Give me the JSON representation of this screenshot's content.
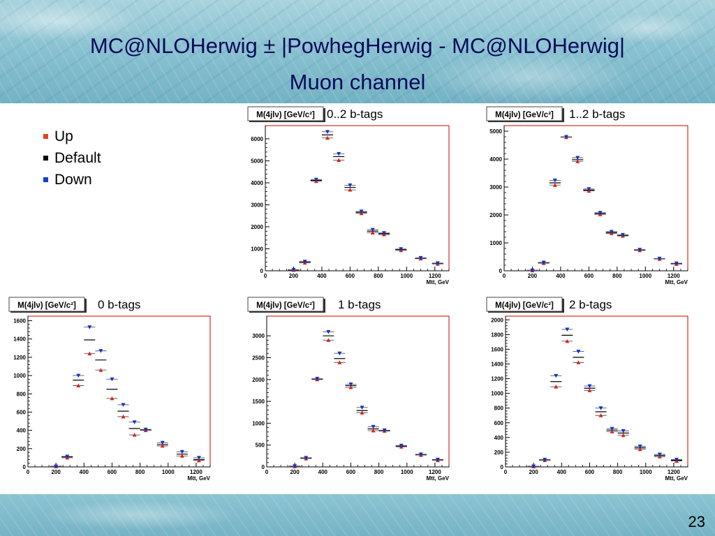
{
  "slide": {
    "title_line1": "MC@NLOHerwig ± |PowhegHerwig - MC@NLOHerwig|",
    "title_line2": "Muon channel",
    "page_number": "23"
  },
  "legend": {
    "items": [
      {
        "label": "Up",
        "color": "#e8401c"
      },
      {
        "label": "Default",
        "color": "#000000"
      },
      {
        "label": "Down",
        "color": "#1040d0"
      }
    ]
  },
  "colors": {
    "up": "#e0201c",
    "default": "#000000",
    "down": "#1030d0",
    "frame": "#cc0000",
    "axis": "#000000"
  },
  "chart_data": [
    {
      "type": "scatter",
      "panel": "0..2 b-tags",
      "hist_title": "M(4jlν) [GeV/c²]",
      "label": "0..2 b-tags",
      "xlabel": "Mtt, GeV",
      "xlim": [
        0,
        1300
      ],
      "ylim": [
        0,
        6600
      ],
      "xticks": [
        0,
        200,
        400,
        600,
        800,
        1000,
        1200
      ],
      "yticks": [
        0,
        1000,
        2000,
        3000,
        4000,
        5000,
        6000
      ],
      "x": [
        200,
        280,
        360,
        440,
        520,
        600,
        680,
        760,
        840,
        960,
        1100,
        1220
      ],
      "xerr": 40,
      "series": [
        {
          "name": "Up",
          "values": [
            30,
            360,
            4070,
            6040,
            5030,
            3680,
            2610,
            1730,
            1650,
            930,
            550,
            310
          ]
        },
        {
          "name": "Default",
          "values": [
            40,
            400,
            4110,
            6180,
            5190,
            3790,
            2660,
            1800,
            1690,
            960,
            570,
            330
          ]
        },
        {
          "name": "Down",
          "values": [
            50,
            420,
            4150,
            6320,
            5320,
            3890,
            2700,
            1870,
            1720,
            990,
            590,
            350
          ]
        }
      ]
    },
    {
      "type": "scatter",
      "panel": "1..2 b-tags",
      "hist_title": "M(4jlν) [GeV/c²]",
      "label": "1..2 b-tags",
      "xlabel": "Mtt, GeV",
      "xlim": [
        0,
        1300
      ],
      "ylim": [
        0,
        5200
      ],
      "xticks": [
        0,
        200,
        400,
        600,
        800,
        1000,
        1200
      ],
      "yticks": [
        0,
        1000,
        2000,
        3000,
        4000,
        5000
      ],
      "x": [
        200,
        280,
        360,
        440,
        520,
        600,
        680,
        760,
        840,
        960,
        1100,
        1220
      ],
      "xerr": 40,
      "series": [
        {
          "name": "Up",
          "values": [
            10,
            270,
            3070,
            4780,
            3920,
            2860,
            2020,
            1340,
            1250,
            730,
            420,
            240
          ]
        },
        {
          "name": "Default",
          "values": [
            15,
            285,
            3150,
            4790,
            3980,
            2890,
            2050,
            1370,
            1270,
            745,
            430,
            255
          ]
        },
        {
          "name": "Down",
          "values": [
            20,
            300,
            3240,
            4800,
            4050,
            2930,
            2080,
            1400,
            1290,
            760,
            440,
            270
          ]
        }
      ]
    },
    {
      "type": "scatter",
      "panel": "0 b-tags",
      "hist_title": "M(4jlν) [GeV/c²]",
      "label": "0 b-tags",
      "xlabel": "Mtt, GeV",
      "xlim": [
        0,
        1300
      ],
      "ylim": [
        0,
        1650
      ],
      "xticks": [
        0,
        200,
        400,
        600,
        800,
        1000,
        1200
      ],
      "yticks": [
        0,
        200,
        400,
        600,
        800,
        1000,
        1200,
        1400,
        1600
      ],
      "x": [
        200,
        280,
        360,
        440,
        520,
        600,
        680,
        760,
        840,
        960,
        1100,
        1220
      ],
      "xerr": 40,
      "series": [
        {
          "name": "Up",
          "values": [
            5,
            100,
            890,
            1240,
            1060,
            750,
            550,
            350,
            400,
            230,
            120,
            70
          ]
        },
        {
          "name": "Default",
          "values": [
            6,
            110,
            950,
            1390,
            1170,
            850,
            610,
            420,
            405,
            245,
            140,
            80
          ]
        },
        {
          "name": "Down",
          "values": [
            7,
            115,
            1000,
            1530,
            1270,
            960,
            680,
            490,
            410,
            265,
            165,
            100
          ]
        }
      ]
    },
    {
      "type": "scatter",
      "panel": "1 b-tags",
      "hist_title": "M(4jlν) [GeV/c²]",
      "label": "1 b-tags",
      "xlabel": "Mtt, GeV",
      "xlim": [
        0,
        1300
      ],
      "ylim": [
        0,
        3450
      ],
      "xticks": [
        0,
        200,
        400,
        600,
        800,
        1000,
        1200
      ],
      "yticks": [
        0,
        500,
        1000,
        1500,
        2000,
        2500,
        3000
      ],
      "x": [
        200,
        280,
        360,
        440,
        520,
        600,
        680,
        760,
        840,
        960,
        1100,
        1220
      ],
      "xerr": 40,
      "series": [
        {
          "name": "Up",
          "values": [
            10,
            190,
            2000,
            2900,
            2390,
            1820,
            1240,
            830,
            820,
            460,
            270,
            150
          ]
        },
        {
          "name": "Default",
          "values": [
            15,
            200,
            2010,
            3000,
            2480,
            1860,
            1290,
            870,
            830,
            475,
            280,
            160
          ]
        },
        {
          "name": "Down",
          "values": [
            20,
            210,
            2020,
            3090,
            2600,
            1890,
            1360,
            920,
            840,
            490,
            290,
            170
          ]
        }
      ]
    },
    {
      "type": "scatter",
      "panel": "2 b-tags",
      "hist_title": "M(4jlν) [GeV/c²]",
      "label": "2 b-tags",
      "xlabel": "Mtt, GeV",
      "xlim": [
        0,
        1300
      ],
      "ylim": [
        0,
        2050
      ],
      "xticks": [
        0,
        200,
        400,
        600,
        800,
        1000,
        1200
      ],
      "yticks": [
        0,
        200,
        400,
        600,
        800,
        1000,
        1200,
        1400,
        1600,
        1800,
        2000
      ],
      "x": [
        200,
        280,
        360,
        440,
        520,
        600,
        680,
        760,
        840,
        960,
        1100,
        1220
      ],
      "xerr": 40,
      "series": [
        {
          "name": "Up",
          "values": [
            5,
            90,
            1090,
            1710,
            1420,
            1040,
            700,
            480,
            430,
            240,
            140,
            80
          ]
        },
        {
          "name": "Default",
          "values": [
            8,
            95,
            1160,
            1790,
            1490,
            1070,
            750,
            500,
            460,
            260,
            155,
            90
          ]
        },
        {
          "name": "Down",
          "values": [
            10,
            100,
            1240,
            1870,
            1570,
            1100,
            800,
            520,
            490,
            280,
            170,
            100
          ]
        }
      ]
    }
  ]
}
